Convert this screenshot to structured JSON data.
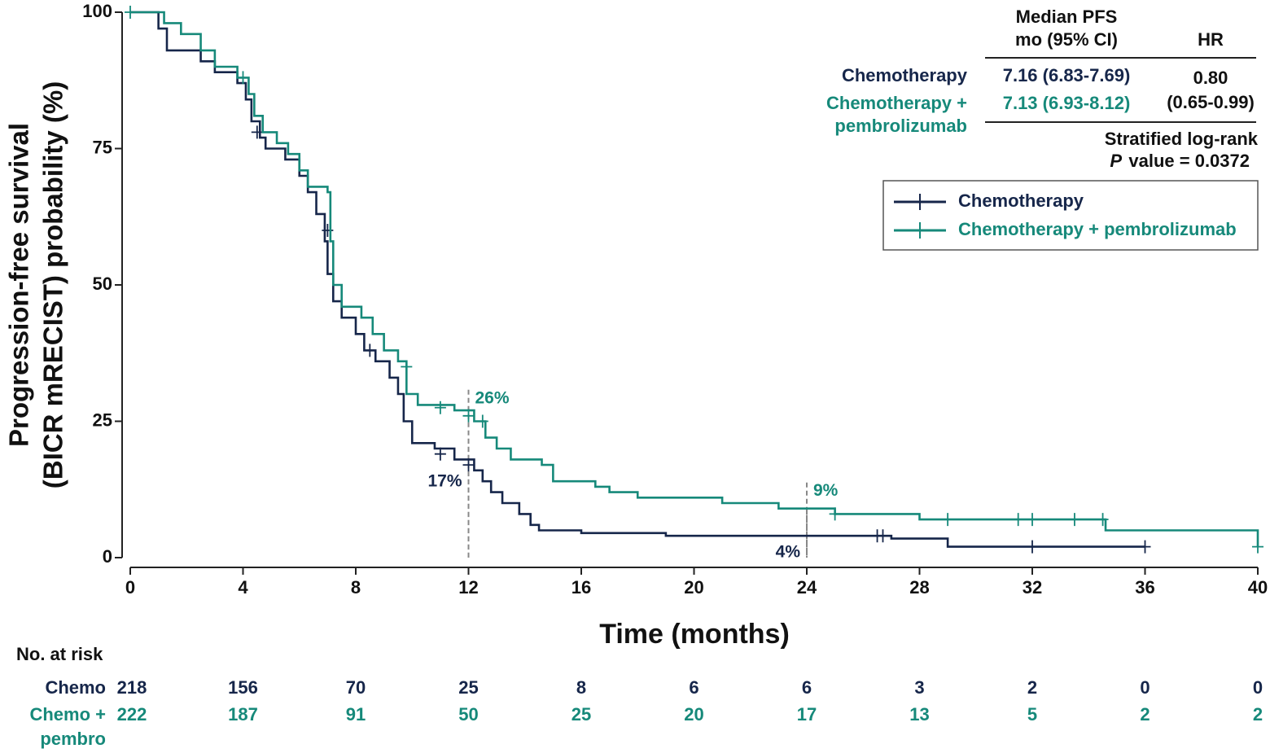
{
  "chart_data": {
    "type": "step",
    "ylabel": [
      "Progression-free survival",
      "(BICR mRECIST) probability (%)"
    ],
    "xlabel": "Time (months)",
    "xlim": [
      0,
      40
    ],
    "ylim": [
      0,
      100
    ],
    "xticks": [
      0,
      4,
      8,
      12,
      16,
      20,
      24,
      28,
      32,
      36,
      40
    ],
    "yticks": [
      0,
      25,
      50,
      75,
      100
    ],
    "legend": "top-right",
    "series": [
      {
        "name": "Chemotherapy",
        "color": "#16264a",
        "x": [
          0,
          1.0,
          1.3,
          2.5,
          3.0,
          3.8,
          4.1,
          4.3,
          4.6,
          4.8,
          5.5,
          6.0,
          6.3,
          6.6,
          6.9,
          7.0,
          7.2,
          7.5,
          8.0,
          8.3,
          8.7,
          9.2,
          9.5,
          9.7,
          10.0,
          10.8,
          11.5,
          12.2,
          12.5,
          12.8,
          13.2,
          13.8,
          14.2,
          14.5,
          16.0,
          19.0,
          27.0,
          29.0,
          36.0
        ],
        "values": [
          100,
          97,
          93,
          91,
          89,
          87,
          84,
          80,
          77,
          75,
          73,
          70,
          67,
          63,
          58,
          52,
          47,
          44,
          41,
          38,
          36,
          33,
          30,
          25,
          21,
          20,
          18,
          16,
          14,
          12,
          10,
          8,
          6,
          5,
          4.5,
          4,
          3.5,
          2,
          2
        ],
        "censored_x": [
          4.5,
          7.0,
          8.5,
          11.0,
          12.0,
          26.5,
          26.7,
          32.0,
          36.0
        ],
        "censored_values": [
          78,
          60,
          38,
          19,
          17,
          4,
          4,
          2,
          2
        ]
      },
      {
        "name": "Chemotherapy + pembrolizumab",
        "color": "#16897a",
        "x": [
          0,
          1.2,
          1.8,
          2.5,
          3.0,
          3.8,
          4.2,
          4.4,
          4.7,
          5.2,
          5.6,
          6.0,
          6.3,
          7.0,
          7.1,
          7.2,
          7.5,
          8.2,
          8.6,
          9.0,
          9.5,
          9.8,
          10.2,
          11.5,
          12.2,
          12.6,
          13.0,
          13.5,
          14.6,
          15.0,
          16.5,
          17.0,
          18.0,
          21.0,
          23.0,
          25.0,
          28.0,
          34.6,
          40.0
        ],
        "values": [
          100,
          98,
          96,
          93,
          90,
          88,
          85,
          81,
          78,
          76,
          74,
          71,
          68,
          67,
          58,
          50,
          46,
          44,
          41,
          38,
          36,
          30,
          28,
          27,
          25,
          22,
          20,
          18,
          17,
          14,
          13,
          12,
          11,
          10,
          9,
          8,
          7,
          5,
          2
        ],
        "censored_x": [
          0,
          4.0,
          9.8,
          11.0,
          12.0,
          12.5,
          25.0,
          29.0,
          31.5,
          32.0,
          33.5,
          34.5,
          40.0
        ],
        "censored_values": [
          100,
          88,
          35,
          27.5,
          26,
          25,
          8,
          7,
          7,
          7,
          7,
          7,
          2
        ]
      }
    ],
    "annotations": [
      {
        "x": 12,
        "value": 26,
        "label": "26%",
        "color": "#16897a",
        "position": "above-right"
      },
      {
        "x": 12,
        "value": 17,
        "label": "17%",
        "color": "#16264a",
        "position": "below-left"
      },
      {
        "x": 24,
        "value": 9,
        "label": "9%",
        "color": "#16897a",
        "position": "above-right"
      },
      {
        "x": 24,
        "value": 4,
        "label": "4%",
        "color": "#16264a",
        "position": "below-left"
      }
    ],
    "summary_table": {
      "median_header": [
        "Median PFS",
        "mo (95% CI)"
      ],
      "hr_header": "HR",
      "rows": [
        {
          "name": [
            "Chemotherapy"
          ],
          "median": "7.16 (6.83-7.69)",
          "color": "#16264a"
        },
        {
          "name": [
            "Chemotherapy +",
            "pembrolizumab"
          ],
          "median": "7.13 (6.93-8.12)",
          "color": "#16897a"
        }
      ],
      "hr": [
        "0.80",
        "(0.65-0.99)"
      ],
      "logrank": "Stratified log-rank",
      "p_symbol": "P",
      "p_text": "value = 0.0372"
    },
    "risk_table": {
      "title": "No. at risk",
      "x": [
        0,
        4,
        8,
        12,
        16,
        20,
        24,
        28,
        32,
        36,
        40
      ],
      "rows": [
        {
          "label": [
            "Chemo"
          ],
          "color": "#16264a",
          "values": [
            218,
            156,
            70,
            25,
            8,
            6,
            6,
            3,
            2,
            0,
            0
          ]
        },
        {
          "label": [
            "Chemo +",
            "pembro"
          ],
          "color": "#16897a",
          "values": [
            222,
            187,
            91,
            50,
            25,
            20,
            17,
            13,
            5,
            2,
            2
          ]
        }
      ]
    }
  }
}
